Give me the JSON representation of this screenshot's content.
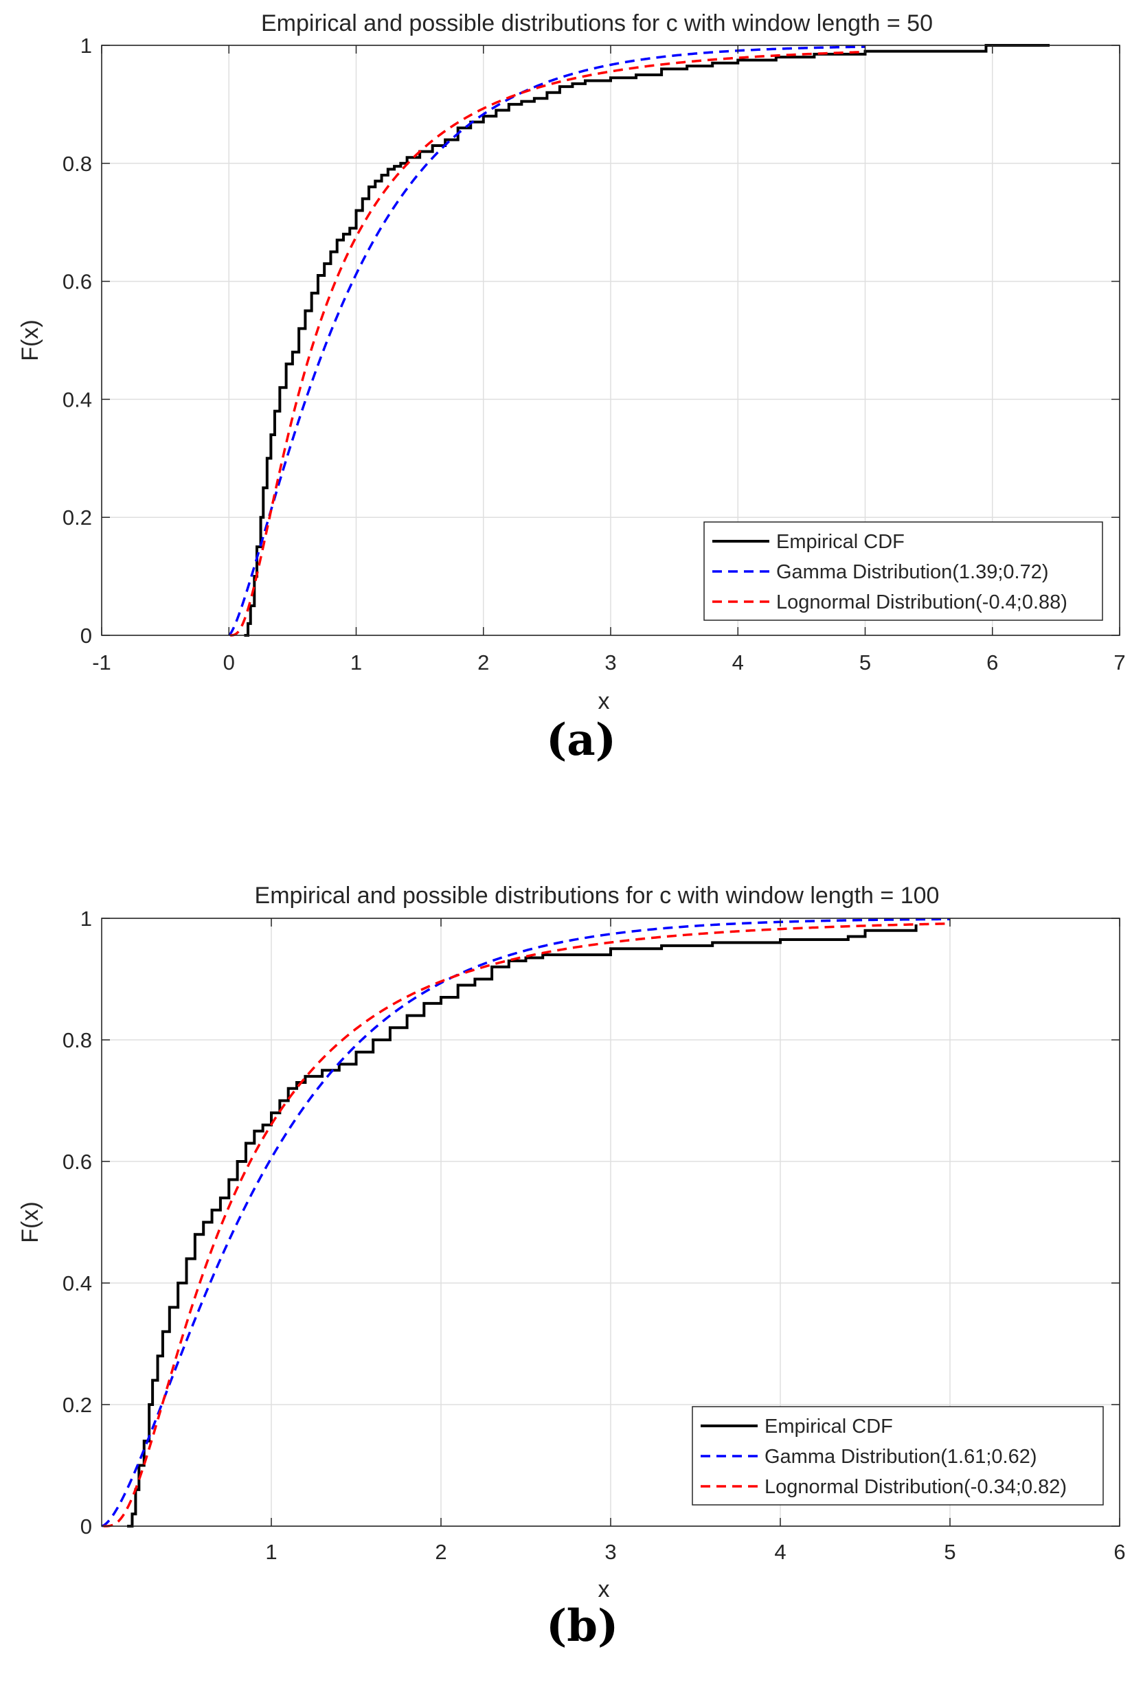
{
  "chart_data": [
    {
      "type": "line",
      "title": "Empirical and possible distributions for c with window length = 50",
      "panel_label": "(a)",
      "xlabel": "x",
      "ylabel": "F(x)",
      "xlim": [
        -1,
        7
      ],
      "ylim": [
        0,
        1
      ],
      "xticks": [
        -1,
        0,
        1,
        2,
        3,
        4,
        5,
        6,
        7
      ],
      "xtick_labels": [
        "-1",
        "0",
        "1",
        "2",
        "3",
        "4",
        "5",
        "6",
        "7"
      ],
      "yticks": [
        0,
        0.2,
        0.4,
        0.6,
        0.8,
        1
      ],
      "ytick_labels": [
        "0",
        "0.2",
        "0.4",
        "0.6",
        "0.8",
        "1"
      ],
      "grid": true,
      "legend_location": "bottom-right",
      "series": [
        {
          "name": "Empirical CDF",
          "color": "#000000",
          "style": "solid-step",
          "x": [
            0.12,
            0.15,
            0.17,
            0.2,
            0.22,
            0.25,
            0.27,
            0.3,
            0.33,
            0.36,
            0.4,
            0.45,
            0.5,
            0.55,
            0.6,
            0.65,
            0.7,
            0.75,
            0.8,
            0.85,
            0.9,
            0.95,
            1.0,
            1.05,
            1.1,
            1.15,
            1.2,
            1.25,
            1.3,
            1.35,
            1.4,
            1.5,
            1.6,
            1.7,
            1.8,
            1.9,
            2.0,
            2.1,
            2.2,
            2.3,
            2.4,
            2.5,
            2.6,
            2.7,
            2.8,
            3.0,
            3.2,
            3.4,
            3.6,
            3.8,
            4.0,
            4.3,
            4.6,
            5.0,
            5.5,
            5.95,
            6.45
          ],
          "y": [
            0.0,
            0.02,
            0.05,
            0.1,
            0.15,
            0.2,
            0.25,
            0.3,
            0.34,
            0.38,
            0.42,
            0.46,
            0.48,
            0.52,
            0.55,
            0.58,
            0.61,
            0.63,
            0.65,
            0.67,
            0.68,
            0.69,
            0.72,
            0.74,
            0.76,
            0.77,
            0.78,
            0.79,
            0.795,
            0.8,
            0.81,
            0.82,
            0.83,
            0.84,
            0.86,
            0.87,
            0.88,
            0.89,
            0.9,
            0.905,
            0.91,
            0.92,
            0.93,
            0.935,
            0.94,
            0.945,
            0.95,
            0.96,
            0.965,
            0.97,
            0.975,
            0.98,
            0.985,
            0.99,
            0.99,
            1.0,
            1.0
          ]
        },
        {
          "name": "Gamma Distribution(1.39;0.72)",
          "color": "#0000ff",
          "style": "dashed",
          "shape": 1.39,
          "scale": 0.72,
          "x_range": [
            0,
            5
          ]
        },
        {
          "name": "Lognormal Distribution(-0.4;0.88)",
          "color": "#ff0000",
          "style": "dashed",
          "mu": -0.4,
          "sigma": 0.88,
          "x_range": [
            0.01,
            5
          ]
        }
      ]
    },
    {
      "type": "line",
      "title": "Empirical and possible distributions for c with window length = 100",
      "panel_label": "(b)",
      "xlabel": "x",
      "ylabel": "F(x)",
      "xlim": [
        0,
        6
      ],
      "ylim": [
        0,
        1
      ],
      "xticks": [
        1,
        2,
        3,
        4,
        5,
        6
      ],
      "xtick_labels": [
        "1",
        "2",
        "3",
        "4",
        "5",
        "6"
      ],
      "yticks": [
        0,
        0.2,
        0.4,
        0.6,
        0.8,
        1
      ],
      "ytick_labels": [
        "0",
        "0.2",
        "0.4",
        "0.6",
        "0.8",
        "1"
      ],
      "grid": true,
      "legend_location": "bottom-right",
      "series": [
        {
          "name": "Empirical CDF",
          "color": "#000000",
          "style": "solid-step",
          "x": [
            0.15,
            0.18,
            0.2,
            0.22,
            0.25,
            0.28,
            0.3,
            0.33,
            0.36,
            0.4,
            0.45,
            0.5,
            0.55,
            0.6,
            0.65,
            0.7,
            0.75,
            0.8,
            0.85,
            0.9,
            0.95,
            1.0,
            1.05,
            1.1,
            1.15,
            1.2,
            1.3,
            1.4,
            1.5,
            1.6,
            1.7,
            1.8,
            1.9,
            2.0,
            2.1,
            2.2,
            2.3,
            2.4,
            2.5,
            2.6,
            3.0,
            3.3,
            3.6,
            4.0,
            4.4,
            4.5,
            4.8
          ],
          "y": [
            0.0,
            0.02,
            0.06,
            0.1,
            0.14,
            0.2,
            0.24,
            0.28,
            0.32,
            0.36,
            0.4,
            0.44,
            0.48,
            0.5,
            0.52,
            0.54,
            0.57,
            0.6,
            0.63,
            0.65,
            0.66,
            0.68,
            0.7,
            0.72,
            0.73,
            0.74,
            0.75,
            0.76,
            0.78,
            0.8,
            0.82,
            0.84,
            0.86,
            0.87,
            0.89,
            0.9,
            0.92,
            0.93,
            0.935,
            0.94,
            0.95,
            0.955,
            0.96,
            0.965,
            0.97,
            0.98,
            0.99
          ]
        },
        {
          "name": "Gamma Distribution(1.61;0.62)",
          "color": "#0000ff",
          "style": "dashed",
          "shape": 1.61,
          "scale": 0.62,
          "x_range": [
            0,
            5
          ]
        },
        {
          "name": "Lognormal Distribution(-0.34;0.82)",
          "color": "#ff0000",
          "style": "dashed",
          "mu": -0.34,
          "sigma": 0.82,
          "x_range": [
            0.01,
            5
          ]
        }
      ]
    }
  ]
}
